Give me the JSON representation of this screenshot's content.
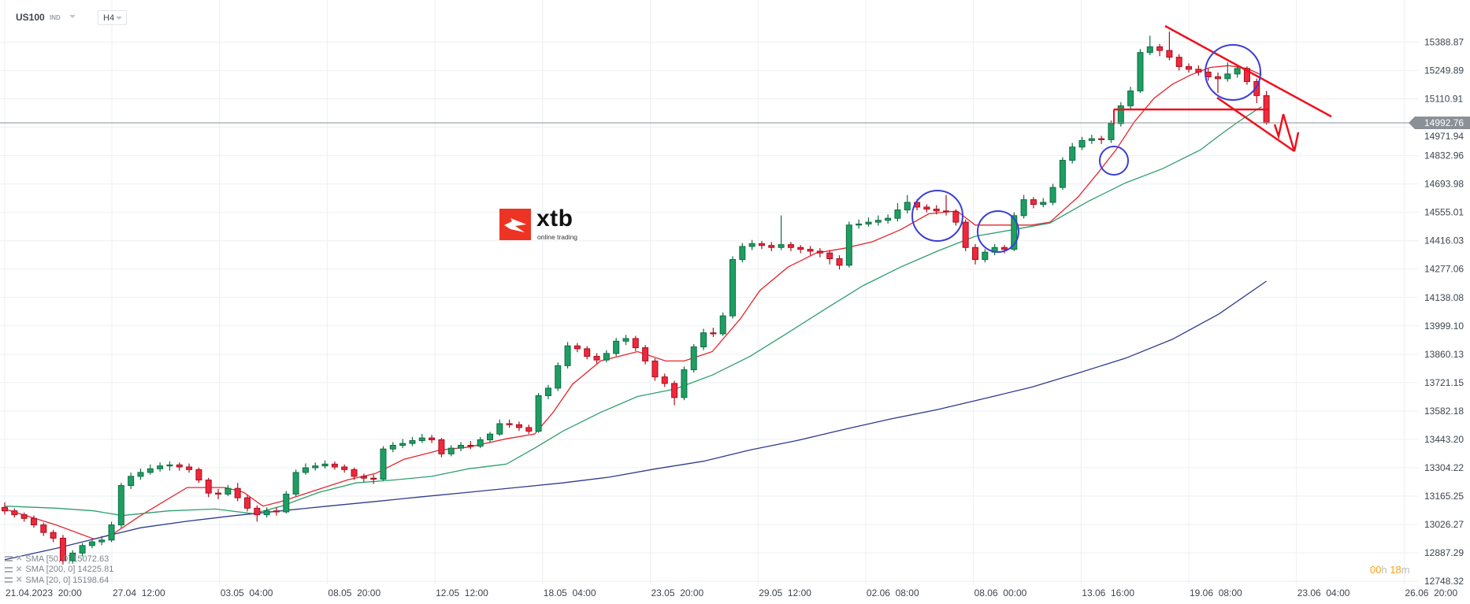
{
  "header": {
    "symbol": "US100",
    "symbol_type": "IND",
    "timeframe": "H4"
  },
  "logo": {
    "name": "xtb",
    "tagline": "online trading"
  },
  "legend": [
    {
      "label": "SMA [50, 0] 15072.63"
    },
    {
      "label": "SMA [200, 0] 14225.81"
    },
    {
      "label": "SMA [20, 0] 15198.64"
    }
  ],
  "timer": {
    "hours": "00",
    "h_unit": "h",
    "minutes": "18",
    "m_unit": "m"
  },
  "current_price": "14992.76",
  "colors": {
    "up": "#1f9e63",
    "down": "#f0283c",
    "sma20": "#e3262e",
    "sma50": "#2e9e6e",
    "sma200": "#2f3a8c",
    "drawing_line": "#f0101e",
    "drawing_circle": "#3a3fd6",
    "countdown": "#f7a21b"
  },
  "chart_data": {
    "type": "candlestick",
    "instrument": "US100",
    "timeframe": "H4",
    "grid": true,
    "y_ticks": [
      "15388.87",
      "15249.89",
      "15110.91",
      "14971.94",
      "14832.96",
      "14693.98",
      "14555.01",
      "14416.03",
      "14277.06",
      "14138.08",
      "13999.10",
      "13860.13",
      "13721.15",
      "13582.18",
      "13443.20",
      "13304.22",
      "13165.25",
      "13026.27",
      "12887.29",
      "12748.32"
    ],
    "ylim": [
      12748.32,
      15388.87
    ],
    "x_ticks": [
      "21.04.2023  20:00",
      "27.04  12:00",
      "03.05  04:00",
      "08.05  20:00",
      "12.05  12:00",
      "18.05  04:00",
      "23.05  20:00",
      "29.05  12:00",
      "02.06  08:00",
      "08.06  00:00",
      "13.06  16:00",
      "19.06  08:00",
      "23.06  04:00",
      "26.06  20:00"
    ],
    "candles_ohlc": [
      [
        13110,
        13135,
        13075,
        13093
      ],
      [
        13093,
        13105,
        13060,
        13074
      ],
      [
        13074,
        13085,
        13040,
        13056
      ],
      [
        13056,
        13070,
        13010,
        13024
      ],
      [
        13024,
        13035,
        12970,
        12987
      ],
      [
        12987,
        13000,
        12940,
        12959
      ],
      [
        12959,
        12975,
        12830,
        12849
      ],
      [
        12849,
        12900,
        12835,
        12886
      ],
      [
        12886,
        12935,
        12870,
        12923
      ],
      [
        12923,
        12955,
        12910,
        12941
      ],
      [
        12941,
        12970,
        12925,
        12950
      ],
      [
        12950,
        13040,
        12940,
        13024
      ],
      [
        13024,
        13230,
        13010,
        13217
      ],
      [
        13217,
        13280,
        13200,
        13262
      ],
      [
        13262,
        13300,
        13245,
        13281
      ],
      [
        13281,
        13320,
        13270,
        13299
      ],
      [
        13299,
        13330,
        13285,
        13313
      ],
      [
        13313,
        13335,
        13290,
        13318
      ],
      [
        13318,
        13330,
        13290,
        13308
      ],
      [
        13308,
        13325,
        13280,
        13295
      ],
      [
        13295,
        13305,
        13230,
        13244
      ],
      [
        13244,
        13255,
        13160,
        13180
      ],
      [
        13180,
        13200,
        13150,
        13175
      ],
      [
        13175,
        13220,
        13165,
        13203
      ],
      [
        13203,
        13230,
        13140,
        13157
      ],
      [
        13157,
        13170,
        13090,
        13106
      ],
      [
        13106,
        13120,
        13040,
        13074
      ],
      [
        13074,
        13110,
        13060,
        13093
      ],
      [
        13093,
        13110,
        13070,
        13088
      ],
      [
        13088,
        13190,
        13080,
        13175
      ],
      [
        13175,
        13295,
        13165,
        13281
      ],
      [
        13281,
        13325,
        13270,
        13304
      ],
      [
        13304,
        13330,
        13290,
        13313
      ],
      [
        13313,
        13340,
        13300,
        13322
      ],
      [
        13322,
        13335,
        13295,
        13308
      ],
      [
        13308,
        13320,
        13280,
        13295
      ],
      [
        13295,
        13305,
        13245,
        13262
      ],
      [
        13262,
        13275,
        13235,
        13253
      ],
      [
        13253,
        13270,
        13225,
        13248
      ],
      [
        13248,
        13410,
        13240,
        13396
      ],
      [
        13396,
        13430,
        13380,
        13414
      ],
      [
        13414,
        13445,
        13400,
        13423
      ],
      [
        13423,
        13455,
        13410,
        13437
      ],
      [
        13437,
        13470,
        13425,
        13450
      ],
      [
        13450,
        13465,
        13425,
        13441
      ],
      [
        13441,
        13450,
        13355,
        13372
      ],
      [
        13372,
        13415,
        13360,
        13400
      ],
      [
        13400,
        13430,
        13385,
        13414
      ],
      [
        13414,
        13435,
        13395,
        13410
      ],
      [
        13410,
        13455,
        13400,
        13441
      ],
      [
        13441,
        13480,
        13430,
        13469
      ],
      [
        13469,
        13540,
        13460,
        13520
      ],
      [
        13520,
        13540,
        13500,
        13515
      ],
      [
        13515,
        13530,
        13485,
        13501
      ],
      [
        13501,
        13515,
        13470,
        13483
      ],
      [
        13483,
        13670,
        13475,
        13657
      ],
      [
        13657,
        13710,
        13640,
        13694
      ],
      [
        13694,
        13820,
        13680,
        13804
      ],
      [
        13804,
        13920,
        13790,
        13901
      ],
      [
        13901,
        13915,
        13870,
        13887
      ],
      [
        13887,
        13900,
        13835,
        13850
      ],
      [
        13850,
        13865,
        13815,
        13832
      ],
      [
        13832,
        13880,
        13820,
        13864
      ],
      [
        13864,
        13940,
        13850,
        13924
      ],
      [
        13924,
        13955,
        13905,
        13937
      ],
      [
        13937,
        13950,
        13875,
        13892
      ],
      [
        13892,
        13905,
        13810,
        13827
      ],
      [
        13827,
        13840,
        13730,
        13749
      ],
      [
        13749,
        13765,
        13700,
        13717
      ],
      [
        13717,
        13730,
        13610,
        13648
      ],
      [
        13648,
        13800,
        13635,
        13784
      ],
      [
        13784,
        13910,
        13770,
        13896
      ],
      [
        13896,
        13985,
        13880,
        13965
      ],
      [
        13965,
        13990,
        13945,
        13960
      ],
      [
        13960,
        14065,
        13950,
        14048
      ],
      [
        14048,
        14340,
        14035,
        14324
      ],
      [
        14324,
        14405,
        14310,
        14388
      ],
      [
        14388,
        14420,
        14370,
        14402
      ],
      [
        14402,
        14415,
        14375,
        14393
      ],
      [
        14393,
        14410,
        14365,
        14383
      ],
      [
        14383,
        14540,
        14370,
        14397
      ],
      [
        14397,
        14410,
        14365,
        14383
      ],
      [
        14383,
        14395,
        14355,
        14374
      ],
      [
        14374,
        14390,
        14345,
        14365
      ],
      [
        14365,
        14380,
        14335,
        14356
      ],
      [
        14356,
        14370,
        14300,
        14328
      ],
      [
        14328,
        14345,
        14275,
        14296
      ],
      [
        14296,
        14510,
        14285,
        14493
      ],
      [
        14493,
        14520,
        14475,
        14498
      ],
      [
        14498,
        14530,
        14485,
        14507
      ],
      [
        14507,
        14540,
        14490,
        14516
      ],
      [
        14516,
        14545,
        14500,
        14526
      ],
      [
        14526,
        14600,
        14510,
        14567
      ],
      [
        14567,
        14640,
        14550,
        14604
      ],
      [
        14604,
        14620,
        14565,
        14581
      ],
      [
        14581,
        14595,
        14555,
        14571
      ],
      [
        14571,
        14590,
        14545,
        14562
      ],
      [
        14562,
        14640,
        14540,
        14558
      ],
      [
        14558,
        14570,
        14490,
        14507
      ],
      [
        14507,
        14520,
        14365,
        14383
      ],
      [
        14383,
        14400,
        14300,
        14324
      ],
      [
        14324,
        14375,
        14310,
        14360
      ],
      [
        14360,
        14400,
        14345,
        14383
      ],
      [
        14383,
        14395,
        14355,
        14374
      ],
      [
        14374,
        14555,
        14365,
        14539
      ],
      [
        14539,
        14640,
        14525,
        14617
      ],
      [
        14617,
        14630,
        14575,
        14594
      ],
      [
        14594,
        14625,
        14580,
        14604
      ],
      [
        14604,
        14695,
        14590,
        14677
      ],
      [
        14677,
        14825,
        14665,
        14810
      ],
      [
        14810,
        14895,
        14795,
        14875
      ],
      [
        14875,
        14925,
        14860,
        14907
      ],
      [
        14907,
        14935,
        14890,
        14916
      ],
      [
        14916,
        14930,
        14890,
        14911
      ],
      [
        14911,
        15005,
        14895,
        14990
      ],
      [
        14990,
        15095,
        14975,
        15077
      ],
      [
        15077,
        15170,
        15060,
        15150
      ],
      [
        15150,
        15355,
        15140,
        15338
      ],
      [
        15338,
        15420,
        15325,
        15366
      ],
      [
        15366,
        15380,
        15320,
        15348
      ],
      [
        15348,
        15440,
        15300,
        15315
      ],
      [
        15315,
        15330,
        15250,
        15269
      ],
      [
        15269,
        15285,
        15240,
        15256
      ],
      [
        15256,
        15275,
        15225,
        15242
      ],
      [
        15242,
        15260,
        15200,
        15219
      ],
      [
        15219,
        15240,
        15140,
        15210
      ],
      [
        15210,
        15290,
        15195,
        15233
      ],
      [
        15233,
        15275,
        15215,
        15260
      ],
      [
        15260,
        15270,
        15180,
        15196
      ],
      [
        15196,
        15210,
        15090,
        15127
      ],
      [
        15127,
        15150,
        14985,
        14993
      ]
    ],
    "series": [
      {
        "name": "SMA [20, 0]",
        "color": "#e3262e",
        "points": [
          [
            0,
            13102
          ],
          [
            5.3,
            13024
          ],
          [
            9.2,
            12955
          ],
          [
            11.1,
            12978
          ],
          [
            14,
            13070
          ],
          [
            16.4,
            13139
          ],
          [
            18.8,
            13207
          ],
          [
            22.7,
            13207
          ],
          [
            24.6,
            13184
          ],
          [
            26.6,
            13116
          ],
          [
            28.5,
            13139
          ],
          [
            31.4,
            13184
          ],
          [
            35.3,
            13244
          ],
          [
            38.2,
            13276
          ],
          [
            41.1,
            13345
          ],
          [
            44.9,
            13391
          ],
          [
            47.8,
            13405
          ],
          [
            51.7,
            13446
          ],
          [
            54.6,
            13469
          ],
          [
            56.5,
            13575
          ],
          [
            58.5,
            13713
          ],
          [
            61.4,
            13827
          ],
          [
            65.2,
            13873
          ],
          [
            68.1,
            13827
          ],
          [
            70,
            13827
          ],
          [
            72.9,
            13873
          ],
          [
            75.8,
            14034
          ],
          [
            77.8,
            14172
          ],
          [
            80.7,
            14287
          ],
          [
            83.6,
            14356
          ],
          [
            86.5,
            14379
          ],
          [
            89.4,
            14411
          ],
          [
            92.3,
            14470
          ],
          [
            95.2,
            14548
          ],
          [
            98.1,
            14562
          ],
          [
            100,
            14493
          ],
          [
            102.9,
            14493
          ],
          [
            105.8,
            14493
          ],
          [
            107.7,
            14507
          ],
          [
            110.6,
            14631
          ],
          [
            112.6,
            14746
          ],
          [
            114.5,
            14861
          ],
          [
            116.4,
            14999
          ],
          [
            118.4,
            15113
          ],
          [
            120.3,
            15182
          ],
          [
            122.2,
            15228
          ],
          [
            124.2,
            15265
          ],
          [
            126.1,
            15274
          ],
          [
            128,
            15260
          ],
          [
            129.5,
            15228
          ]
        ]
      },
      {
        "name": "SMA [50, 0]",
        "color": "#2e9e6e",
        "points": [
          [
            0,
            13116
          ],
          [
            5.3,
            13106
          ],
          [
            9.2,
            13093
          ],
          [
            12.1,
            13070
          ],
          [
            16.9,
            13093
          ],
          [
            21.7,
            13102
          ],
          [
            25.6,
            13079
          ],
          [
            28.5,
            13116
          ],
          [
            32.4,
            13184
          ],
          [
            36.2,
            13230
          ],
          [
            40.1,
            13244
          ],
          [
            44,
            13262
          ],
          [
            47.8,
            13299
          ],
          [
            51.7,
            13322
          ],
          [
            54.6,
            13400
          ],
          [
            57.5,
            13483
          ],
          [
            61.4,
            13575
          ],
          [
            65.2,
            13653
          ],
          [
            69.1,
            13690
          ],
          [
            72.9,
            13758
          ],
          [
            76.8,
            13850
          ],
          [
            80.7,
            13965
          ],
          [
            84.5,
            14080
          ],
          [
            88.4,
            14195
          ],
          [
            92.3,
            14287
          ],
          [
            96.1,
            14365
          ],
          [
            100,
            14438
          ],
          [
            103.9,
            14470
          ],
          [
            107.7,
            14503
          ],
          [
            111.6,
            14608
          ],
          [
            115.5,
            14700
          ],
          [
            119.3,
            14769
          ],
          [
            123.2,
            14861
          ],
          [
            125.1,
            14930
          ],
          [
            127.1,
            14999
          ],
          [
            129,
            15058
          ],
          [
            129.5,
            15072
          ]
        ]
      },
      {
        "name": "SMA [200, 0]",
        "color": "#2f3a8c",
        "points": [
          [
            0,
            12854
          ],
          [
            5.3,
            12909
          ],
          [
            9.2,
            12955
          ],
          [
            14,
            13010
          ],
          [
            18.8,
            13042
          ],
          [
            23.7,
            13070
          ],
          [
            28.5,
            13093
          ],
          [
            33.3,
            13116
          ],
          [
            38.2,
            13139
          ],
          [
            43,
            13162
          ],
          [
            47.8,
            13184
          ],
          [
            52.7,
            13207
          ],
          [
            57.5,
            13230
          ],
          [
            62.3,
            13258
          ],
          [
            67.1,
            13299
          ],
          [
            72,
            13336
          ],
          [
            76.8,
            13391
          ],
          [
            81.6,
            13437
          ],
          [
            86.5,
            13492
          ],
          [
            91.3,
            13543
          ],
          [
            96.1,
            13589
          ],
          [
            101,
            13644
          ],
          [
            105.8,
            13699
          ],
          [
            110.6,
            13768
          ],
          [
            115.5,
            13841
          ],
          [
            120.3,
            13933
          ],
          [
            125.1,
            14057
          ],
          [
            130,
            14218
          ]
        ]
      }
    ]
  }
}
